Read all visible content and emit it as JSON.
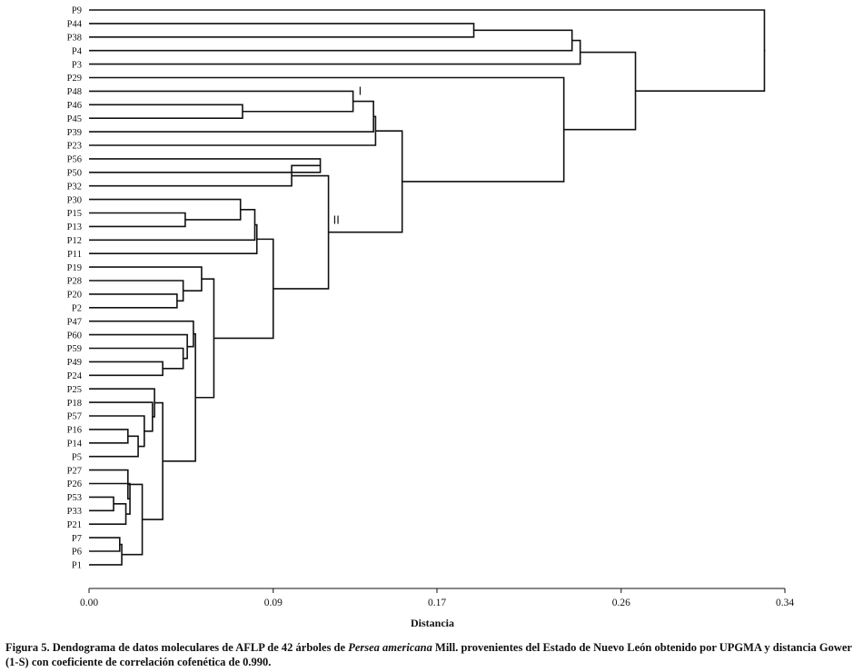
{
  "chart_data": {
    "type": "dendrogram",
    "xlabel": "Distancia",
    "xlim": [
      0,
      0.34
    ],
    "x_ticks": [
      0.0,
      0.09,
      0.17,
      0.26,
      0.34
    ],
    "x_tick_labels": [
      "0.00",
      "0.09",
      "0.17",
      "0.26",
      "0.34"
    ],
    "leaves": [
      "P9",
      "P44",
      "P38",
      "P4",
      "P3",
      "P29",
      "P48",
      "P46",
      "P45",
      "P39",
      "P23",
      "P56",
      "P50",
      "P32",
      "P30",
      "P15",
      "P13",
      "P12",
      "P11",
      "P19",
      "P28",
      "P20",
      "P2",
      "P47",
      "P60",
      "P59",
      "P49",
      "P24",
      "P25",
      "P18",
      "P57",
      "P16",
      "P14",
      "P5",
      "P27",
      "P26",
      "P53",
      "P33",
      "P21",
      "P7",
      "P6",
      "P1"
    ],
    "merges": [
      {
        "a": "P44",
        "b": "P38",
        "height": 0.188
      },
      {
        "a": "M1",
        "b": "P4",
        "height": 0.236
      },
      {
        "a": "M2",
        "b": "P3",
        "height": 0.24
      },
      {
        "a": "P46",
        "b": "P45",
        "height": 0.075
      },
      {
        "a": "P48",
        "b": "M4",
        "height": 0.129
      },
      {
        "a": "M5",
        "b": "P39",
        "height": 0.139
      },
      {
        "a": "M6",
        "b": "P23",
        "height": 0.14
      },
      {
        "a": "P56",
        "b": "P50",
        "height": 0.113
      },
      {
        "a": "M8",
        "b": "P32",
        "height": 0.099
      },
      {
        "a": "P15",
        "b": "P13",
        "height": 0.047
      },
      {
        "a": "P30",
        "b": "M10",
        "height": 0.074
      },
      {
        "a": "M11",
        "b": "P12",
        "height": 0.081
      },
      {
        "a": "M12",
        "b": "P11",
        "height": 0.082
      },
      {
        "a": "P20",
        "b": "P2",
        "height": 0.043
      },
      {
        "a": "P28",
        "b": "M14",
        "height": 0.046
      },
      {
        "a": "P19",
        "b": "M15",
        "height": 0.055
      },
      {
        "a": "P49",
        "b": "P24",
        "height": 0.036
      },
      {
        "a": "P59",
        "b": "M17",
        "height": 0.046
      },
      {
        "a": "P60",
        "b": "M18",
        "height": 0.048
      },
      {
        "a": "P47",
        "b": "M19",
        "height": 0.051
      },
      {
        "a": "P16",
        "b": "P14",
        "height": 0.019
      },
      {
        "a": "M21",
        "b": "P5",
        "height": 0.024
      },
      {
        "a": "P57",
        "b": "M22",
        "height": 0.027
      },
      {
        "a": "P18",
        "b": "M23",
        "height": 0.031
      },
      {
        "a": "P25",
        "b": "M24",
        "height": 0.032
      },
      {
        "a": "P53",
        "b": "P33",
        "height": 0.012
      },
      {
        "a": "M26",
        "b": "P21",
        "height": 0.018
      },
      {
        "a": "P26",
        "b": "M27",
        "height": 0.02
      },
      {
        "a": "P27",
        "b": "M28",
        "height": 0.019
      },
      {
        "a": "P7",
        "b": "P6",
        "height": 0.015
      },
      {
        "a": "M30",
        "b": "P1",
        "height": 0.016
      },
      {
        "a": "M29",
        "b": "M31",
        "height": 0.026
      },
      {
        "a": "M25",
        "b": "M32",
        "height": 0.036
      },
      {
        "a": "M20",
        "b": "M33",
        "height": 0.052
      },
      {
        "a": "M16",
        "b": "M34",
        "height": 0.061
      },
      {
        "a": "M13",
        "b": "M35",
        "height": 0.09
      },
      {
        "a": "M9",
        "b": "M36",
        "height": 0.117
      },
      {
        "a": "M7",
        "b": "M37",
        "height": 0.153
      },
      {
        "a": "P29",
        "b": "M38",
        "height": 0.232
      },
      {
        "a": "M3",
        "b": "M39",
        "height": 0.267
      },
      {
        "a": "P9",
        "b": "M40",
        "height": 0.33
      }
    ],
    "annotations": [
      {
        "text": "I",
        "near": "M5"
      },
      {
        "text": "II",
        "near": "M37"
      }
    ]
  },
  "caption": {
    "prefix": "Figura 5. Dendograma de datos moleculares de AFLP de 42 árboles de ",
    "species": "Persea americana",
    "suffix": " Mill. provenientes del Estado de Nuevo León obtenido por UPGMA y distancia Gower (1-S) con coeficiente de correlación cofenética de 0.990."
  }
}
